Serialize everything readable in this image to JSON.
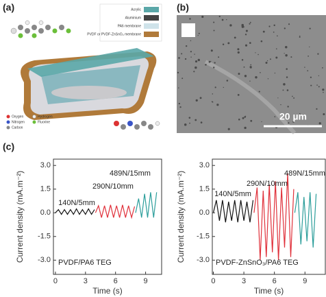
{
  "panels": {
    "a": {
      "label": "(a)",
      "layers": [
        "Acrylic",
        "Aluminium",
        "PA6 membrane",
        "PVDF or PVDF-ZnSnO₃ membrane"
      ],
      "atoms": [
        "Oxygen",
        "Nitrogen",
        "Carbon",
        "Hydrogen",
        "Fluorine"
      ]
    },
    "b": {
      "label": "(b)",
      "scale_bar": "20 µm"
    },
    "c": {
      "label": "(c)"
    }
  },
  "chart_data": [
    {
      "type": "line",
      "ylabel": "Current density (mA.m⁻²)",
      "xlabel": "Time (s)",
      "annotations": [
        "140N/5mm",
        "290N/10mm",
        "489N/15mm"
      ],
      "note": "PVDF/PA6 TEG",
      "xlim": [
        -0.2,
        10.6
      ],
      "ylim": [
        -3.9,
        3.4
      ],
      "xticks": [
        0,
        3,
        6,
        9
      ],
      "yticks": [
        {
          "value": 3,
          "label": "3.0"
        },
        {
          "value": 1.5,
          "label": "1.5"
        },
        {
          "value": 0,
          "label": "0.0"
        },
        {
          "value": -1.5,
          "label": "-1.5"
        },
        {
          "value": -3,
          "label": "-3.0"
        }
      ],
      "series": [
        {
          "color": "#111111",
          "x": [
            0,
            0.3,
            0.6,
            0.9,
            1.2,
            1.5,
            1.8,
            2.1,
            2.4,
            2.7,
            3.0,
            3.3,
            3.6,
            3.9
          ],
          "values": [
            0,
            0.2,
            -0.1,
            0.2,
            -0.1,
            0.2,
            -0.1,
            0.25,
            -0.1,
            0.2,
            -0.1,
            0.25,
            -0.1,
            0.2
          ]
        },
        {
          "color": "#e0303a",
          "x": [
            4.0,
            4.3,
            4.6,
            4.9,
            5.2,
            5.5,
            5.8,
            6.1,
            6.4,
            6.7,
            7.0,
            7.3,
            7.6,
            7.9
          ],
          "values": [
            0,
            0.45,
            -0.3,
            0.45,
            -0.3,
            0.5,
            -0.3,
            0.45,
            -0.3,
            0.5,
            -0.3,
            0.45,
            -0.3,
            0.4
          ]
        },
        {
          "color": "#2a9d9a",
          "x": [
            8.0,
            8.3,
            8.6,
            8.9,
            9.2,
            9.5,
            9.8,
            10.1
          ],
          "values": [
            0,
            0.9,
            -0.3,
            1.2,
            -0.3,
            1.3,
            -0.3,
            1.3
          ]
        }
      ]
    },
    {
      "type": "line",
      "ylabel": "Current density (mA.m⁻²)",
      "xlabel": "Time (s)",
      "annotations": [
        "140N/5mm",
        "290N/10mm",
        "489N/15mm"
      ],
      "note": "PVDF-ZnSnO₃/PA6 TEG",
      "xlim": [
        -0.1,
        11
      ],
      "ylim": [
        -3.9,
        3.4
      ],
      "xticks": [
        0,
        3,
        6,
        9
      ],
      "yticks": [
        {
          "value": 3,
          "label": "3.0"
        },
        {
          "value": 1.5,
          "label": "1.5"
        },
        {
          "value": 0,
          "label": "0.0"
        },
        {
          "value": -1.5,
          "label": "-1.5"
        },
        {
          "value": -3,
          "label": "-3.0"
        }
      ],
      "series": [
        {
          "color": "#111111",
          "x": [
            0,
            0.3,
            0.6,
            0.9,
            1.2,
            1.5,
            1.8,
            2.1,
            2.4,
            2.7,
            3.0,
            3.3,
            3.6,
            3.9
          ],
          "values": [
            0,
            0.8,
            -0.5,
            0.8,
            -0.6,
            0.7,
            -0.5,
            0.8,
            -0.6,
            0.8,
            -0.5,
            0.7,
            -0.6,
            0.8
          ]
        },
        {
          "color": "#e0303a",
          "x": [
            4.0,
            4.3,
            4.6,
            4.9,
            5.2,
            5.5,
            5.8,
            6.1,
            6.4,
            6.7,
            7.0,
            7.3,
            7.6,
            7.9
          ],
          "values": [
            0,
            1.6,
            -3.0,
            1.4,
            -2.8,
            1.8,
            -2.5,
            2.0,
            -3.0,
            1.6,
            -2.2,
            2.5,
            -2.8,
            1.5
          ]
        },
        {
          "color": "#2a9d9a",
          "x": [
            8.0,
            8.3,
            8.6,
            8.9,
            9.2,
            9.5,
            9.8,
            10.1
          ],
          "values": [
            0,
            1.3,
            -2.0,
            1.0,
            -1.8,
            1.3,
            -2.2,
            1.2
          ]
        }
      ]
    }
  ]
}
